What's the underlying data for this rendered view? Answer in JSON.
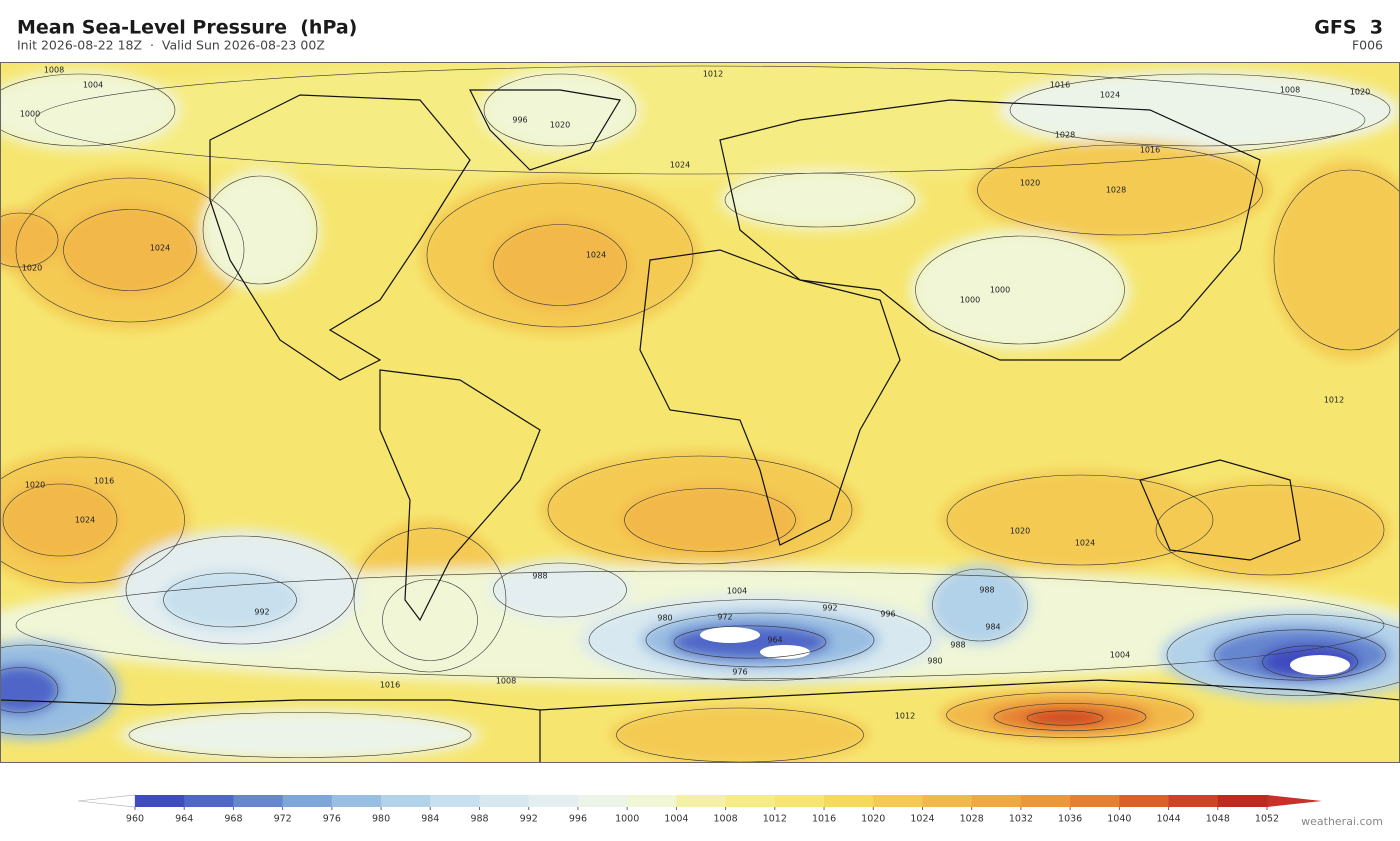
{
  "header": {
    "title": "Mean Sea-Level Pressure  (hPa)",
    "subtitle": "Init 2026-08-22 18Z  ·  Valid Sun 2026-08-23 00Z",
    "model": "GFS  3",
    "step": "F006"
  },
  "colorbar": {
    "ticks": [
      960,
      964,
      968,
      972,
      976,
      980,
      984,
      988,
      992,
      996,
      1000,
      1004,
      1008,
      1012,
      1016,
      1020,
      1024,
      1028,
      1032,
      1036,
      1040,
      1044,
      1048,
      1052
    ],
    "colors": [
      "#3f4cc0",
      "#5066c8",
      "#6686d0",
      "#7ea6d8",
      "#98bee2",
      "#b2d2ea",
      "#c8e0ee",
      "#d8e8f0",
      "#e4eef0",
      "#ecf4ea",
      "#f0f6d6",
      "#f4f0a6",
      "#f6ec84",
      "#f6e670",
      "#f6da5a",
      "#f4ca52",
      "#f2b84a",
      "#f0a840",
      "#ec9838",
      "#e67f30",
      "#dc6028",
      "#cf4222",
      "#c02820"
    ],
    "under_color": "#ffffff",
    "over_color": "#c8302a"
  },
  "map": {
    "contour_labels": [
      1008,
      1004,
      1012,
      1000,
      996,
      1020,
      1024,
      1028,
      1016,
      1016,
      1024,
      1020,
      1012,
      1008,
      1020,
      1024,
      1028,
      1020,
      1024,
      1016,
      1020,
      1024,
      988,
      992,
      980,
      972,
      964,
      976,
      980,
      988,
      992,
      996,
      1000,
      1004,
      1008,
      1016,
      1024,
      1020,
      1012,
      1004,
      988,
      984,
      1000
    ]
  },
  "footer": {
    "credit": "weatherai.com"
  }
}
